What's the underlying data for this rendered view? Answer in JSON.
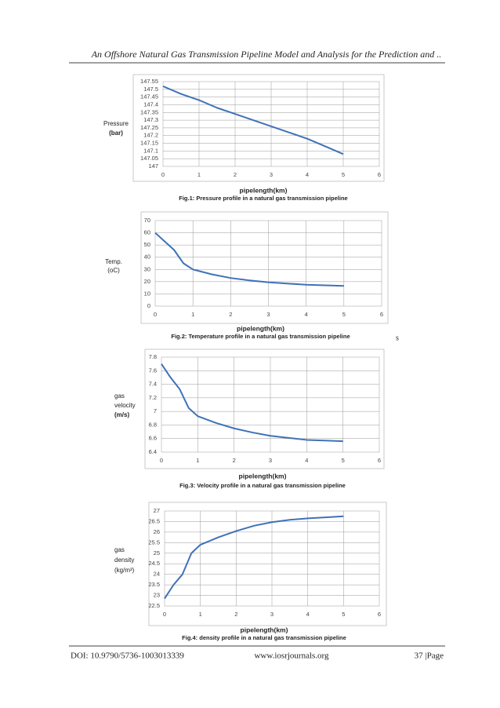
{
  "header": {
    "title": "An Offshore Natural Gas Transmission Pipeline Model and Analysis for the Prediction and .."
  },
  "note": "s",
  "footer": {
    "doi": "DOI: 10.9790/5736-1003013339",
    "site": "www.iosrjournals.org",
    "page": "37 |Page"
  },
  "chart_data": [
    {
      "type": "line",
      "title": "Fig.1: Pressure profile in a natural gas transmission pipeline",
      "ylabel": [
        "Pressure",
        "(bar)"
      ],
      "xlabel": "pipelength(km)",
      "xlim": [
        0,
        6
      ],
      "xticks": [
        0,
        1,
        2,
        3,
        4,
        5,
        6
      ],
      "ylim": [
        147,
        147.55
      ],
      "yticks": [
        147,
        147.05,
        147.1,
        147.15,
        147.2,
        147.25,
        147.3,
        147.35,
        147.4,
        147.45,
        147.5,
        147.55
      ],
      "grid": true,
      "color": "#3f72b8",
      "x": [
        0,
        0.5,
        1,
        1.5,
        2,
        2.5,
        3,
        3.5,
        4,
        4.5,
        5
      ],
      "values": [
        147.52,
        147.47,
        147.43,
        147.38,
        147.34,
        147.3,
        147.26,
        147.22,
        147.18,
        147.13,
        147.08
      ]
    },
    {
      "type": "line",
      "title": "Fig.2: Temperature profile in a natural gas transmission pipeline",
      "ylabel": [
        "Temp.",
        "(oC)"
      ],
      "xlabel": "pipelength(km)",
      "xlim": [
        0,
        6
      ],
      "xticks": [
        0,
        1,
        2,
        3,
        4,
        5,
        6
      ],
      "ylim": [
        0,
        70
      ],
      "yticks": [
        0,
        10,
        20,
        30,
        40,
        50,
        60,
        70
      ],
      "grid": true,
      "color": "#3f72b8",
      "x": [
        0,
        0.25,
        0.5,
        0.75,
        1,
        1.5,
        2,
        2.5,
        3,
        3.5,
        4,
        4.5,
        5
      ],
      "values": [
        60,
        53,
        46,
        35,
        30,
        26,
        23,
        21,
        19.5,
        18.5,
        17.5,
        17,
        16.5
      ]
    },
    {
      "type": "line",
      "title": "Fig.3: Velocity profile in a natural gas transmission pipeline",
      "ylabel": [
        "gas",
        "velocity",
        "(m/s)"
      ],
      "xlabel": "pipelength(km)",
      "xlim": [
        0,
        6
      ],
      "xticks": [
        0,
        1,
        2,
        3,
        4,
        5,
        6
      ],
      "ylim": [
        6.4,
        7.8
      ],
      "yticks": [
        6.4,
        6.6,
        6.8,
        7,
        7.2,
        7.4,
        7.6,
        7.8
      ],
      "grid": true,
      "color": "#3f72b8",
      "x": [
        0,
        0.25,
        0.5,
        0.75,
        1,
        1.5,
        2,
        2.5,
        3,
        3.5,
        4,
        4.5,
        5
      ],
      "values": [
        7.7,
        7.5,
        7.33,
        7.05,
        6.93,
        6.83,
        6.75,
        6.69,
        6.64,
        6.61,
        6.58,
        6.57,
        6.56
      ]
    },
    {
      "type": "line",
      "title": "Fig.4: density profile in a natural gas transmission pipeline",
      "ylabel": [
        "gas",
        "density",
        "(kg/m³)"
      ],
      "xlabel": "pipelength(km)",
      "xlim": [
        0,
        6
      ],
      "xticks": [
        0,
        1,
        2,
        3,
        4,
        5,
        6
      ],
      "ylim": [
        22.5,
        27
      ],
      "yticks": [
        22.5,
        23,
        23.5,
        24,
        24.5,
        25,
        25.5,
        26,
        26.5,
        27
      ],
      "grid": true,
      "color": "#3f72b8",
      "x": [
        0,
        0.25,
        0.5,
        0.75,
        1,
        1.5,
        2,
        2.5,
        3,
        3.5,
        4,
        4.5,
        5
      ],
      "values": [
        22.85,
        23.5,
        24.0,
        25.0,
        25.4,
        25.75,
        26.05,
        26.3,
        26.47,
        26.58,
        26.65,
        26.7,
        26.75
      ]
    }
  ]
}
